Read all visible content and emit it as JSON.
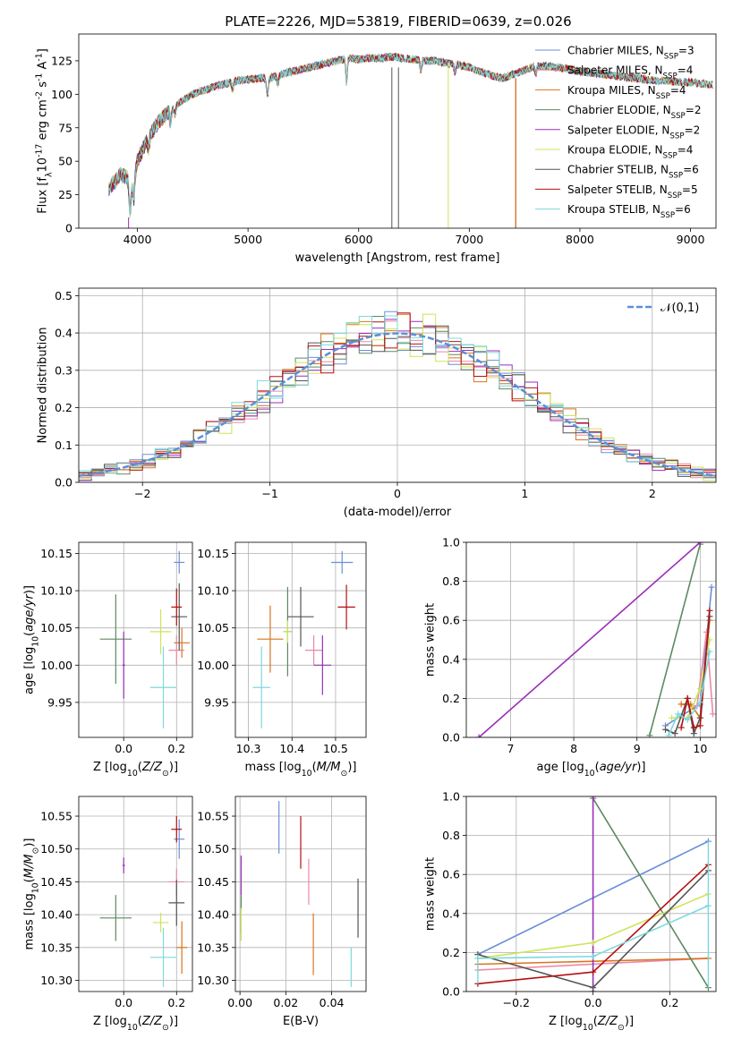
{
  "figure_title": "PLATE=2226, MJD=53819, FIBERID=0639, z=0.026",
  "colors": {
    "Chabrier MILES": "#6b8fd9",
    "Salpeter MILES": "#e98aa4",
    "Kroupa MILES": "#d9741f",
    "Chabrier ELODIE": "#5c8a62",
    "Salpeter ELODIE": "#9a2fb8",
    "Kroupa ELODIE": "#cde45a",
    "Chabrier STELIB": "#555555",
    "Salpeter STELIB": "#b51010",
    "Kroupa STELIB": "#7dd9dd"
  },
  "chart_data": [
    {
      "id": "spectrum",
      "type": "line",
      "title": "PLATE=2226, MJD=53819, FIBERID=0639, z=0.026",
      "xlabel": "wavelength [Angstrom, rest frame]",
      "ylabel": "Flux [f$_\\lambda$10$^{-17}$ erg cm$^{-2}$ s$^{-1}$ A$^{-1}$]",
      "xlim": [
        3470,
        9230
      ],
      "ylim": [
        0,
        145
      ],
      "xticks": [
        4000,
        5000,
        6000,
        7000,
        8000,
        9000
      ],
      "yticks": [
        0,
        25,
        50,
        75,
        100,
        125
      ],
      "legend_position": "top-right",
      "legend": [
        "Chabrier MILES, N$_{SSP}$=3",
        "Salpeter MILES, N$_{SSP}$=4",
        "Kroupa MILES, N$_{SSP}$=4",
        "Chabrier ELODIE, N$_{SSP}$=2",
        "Salpeter ELODIE, N$_{SSP}$=2",
        "Kroupa ELODIE, N$_{SSP}$=4",
        "Chabrier STELIB, N$_{SSP}$=6",
        "Salpeter STELIB, N$_{SSP}$=5",
        "Kroupa STELIB, N$_{SSP}$=6"
      ],
      "continuum": {
        "x": [
          3740,
          3800,
          3850,
          3900,
          3950,
          4000,
          4100,
          4200,
          4300,
          4400,
          4500,
          4600,
          4700,
          4800,
          4900,
          5000,
          5100,
          5200,
          5300,
          5400,
          5500,
          5600,
          5700,
          5800,
          5900,
          6000,
          6100,
          6200,
          6300,
          6400,
          6500,
          6600,
          6700,
          6800,
          6900,
          7000,
          7100,
          7200,
          7300,
          7400,
          7500,
          7600,
          7700,
          7800,
          7900,
          8000,
          8100,
          8200,
          8300,
          8400,
          8500,
          8600,
          8700,
          8800,
          8900,
          9000,
          9100,
          9200
        ],
        "y": [
          30,
          35,
          40,
          38,
          30,
          50,
          68,
          80,
          88,
          95,
          100,
          103,
          106,
          108,
          110,
          111,
          112,
          112,
          115,
          117,
          119,
          121,
          123,
          125,
          127,
          126,
          127,
          127,
          128,
          127,
          126,
          125,
          125,
          123,
          122,
          120,
          117,
          114,
          112,
          115,
          118,
          121,
          121,
          120,
          119,
          117,
          116,
          115,
          114,
          113,
          112,
          111,
          110,
          110,
          109,
          109,
          108,
          107
        ]
      },
      "end_wavelengths": [
        9020,
        9020,
        9020,
        9020,
        9020,
        9200,
        9200,
        9200,
        9200
      ],
      "drop_lines": [
        {
          "model": "Salpeter ELODIE",
          "x": 3920,
          "from": 8
        },
        {
          "model": "Kroupa ELODIE",
          "x": 6810,
          "from": 120
        },
        {
          "model": "Salpeter STELIB",
          "x": 7420,
          "from": 112
        },
        {
          "model": "Kroupa MILES",
          "x": 7420,
          "from": 112
        },
        {
          "model": "Chabrier STELIB",
          "x": 6300,
          "from": 120
        },
        {
          "model": "Chabrier STELIB",
          "x": 6360,
          "from": 120
        }
      ]
    },
    {
      "id": "residuals",
      "type": "area",
      "xlabel": "(data-model)/error",
      "ylabel": "Normed distribution",
      "xlim": [
        -2.5,
        2.5
      ],
      "ylim": [
        0,
        0.52
      ],
      "xticks": [
        -2,
        -1,
        0,
        1,
        2
      ],
      "yticks": [
        0.0,
        0.1,
        0.2,
        0.3,
        0.4,
        0.5
      ],
      "grid": true,
      "legend_position": "top-right",
      "reference_curve": {
        "label": "$\\mathcal{N}(0,1)$",
        "mean": 0,
        "sigma": 1
      },
      "bin_width": 0.1
    },
    {
      "id": "age_vs_Z",
      "type": "scatter",
      "xlabel": "Z [log$_{10}$($Z/Z_\\odot$)]",
      "ylabel": "age  [log$_{10}$($age/yr$)]",
      "xlim": [
        -0.17,
        0.26
      ],
      "ylim": [
        9.903,
        10.165
      ],
      "xticks": [
        0.0,
        0.2
      ],
      "yticks": [
        9.95,
        10.0,
        10.05,
        10.1,
        10.15
      ],
      "grid": true,
      "points": [
        {
          "model": "Chabrier MILES",
          "x": 0.21,
          "y": 10.138,
          "xerr": 0.02,
          "yerr": 0.015
        },
        {
          "model": "Salpeter MILES",
          "x": 0.2,
          "y": 10.02,
          "xerr": 0.03,
          "yerr": 0.02
        },
        {
          "model": "Kroupa MILES",
          "x": 0.22,
          "y": 10.03,
          "xerr": 0.03,
          "yerr": 0.02
        },
        {
          "model": "Chabrier ELODIE",
          "x": -0.03,
          "y": 10.035,
          "xerr": 0.06,
          "yerr": 0.06
        },
        {
          "model": "Salpeter ELODIE",
          "x": 0.0,
          "y": 10.0,
          "xerr": 0.005,
          "yerr": 0.045
        },
        {
          "model": "Kroupa ELODIE",
          "x": 0.14,
          "y": 10.045,
          "xerr": 0.04,
          "yerr": 0.03
        },
        {
          "model": "Chabrier STELIB",
          "x": 0.21,
          "y": 10.065,
          "xerr": 0.03,
          "yerr": 0.045
        },
        {
          "model": "Salpeter STELIB",
          "x": 0.2,
          "y": 10.078,
          "xerr": 0.02,
          "yerr": 0.025
        },
        {
          "model": "Kroupa STELIB",
          "x": 0.15,
          "y": 9.97,
          "xerr": 0.05,
          "yerr": 0.055
        }
      ]
    },
    {
      "id": "age_vs_mass",
      "type": "scatter",
      "xlabel": "mass [log$_{10}$($M/M_\\odot$)]",
      "ylabel": "",
      "xlim": [
        10.27,
        10.57
      ],
      "ylim": [
        9.903,
        10.165
      ],
      "xticks": [
        10.3,
        10.4,
        10.5
      ],
      "yticks": [
        9.95,
        10.0,
        10.05,
        10.1,
        10.15
      ],
      "grid": true,
      "points": [
        {
          "model": "Chabrier MILES",
          "x": 10.515,
          "y": 10.138,
          "xerr": 0.025,
          "yerr": 0.015
        },
        {
          "model": "Salpeter MILES",
          "x": 10.45,
          "y": 10.02,
          "xerr": 0.02,
          "yerr": 0.02
        },
        {
          "model": "Kroupa MILES",
          "x": 10.35,
          "y": 10.035,
          "xerr": 0.03,
          "yerr": 0.045
        },
        {
          "model": "Chabrier ELODIE",
          "x": 10.39,
          "y": 10.045,
          "xerr": 0.01,
          "yerr": 0.06
        },
        {
          "model": "Salpeter ELODIE",
          "x": 10.47,
          "y": 10.0,
          "xerr": 0.02,
          "yerr": 0.04
        },
        {
          "model": "Kroupa ELODIE",
          "x": 10.39,
          "y": 10.045,
          "xerr": 0.01,
          "yerr": 0.015
        },
        {
          "model": "Chabrier STELIB",
          "x": 10.42,
          "y": 10.065,
          "xerr": 0.03,
          "yerr": 0.04
        },
        {
          "model": "Salpeter STELIB",
          "x": 10.525,
          "y": 10.078,
          "xerr": 0.02,
          "yerr": 0.03
        },
        {
          "model": "Kroupa STELIB",
          "x": 10.33,
          "y": 9.97,
          "xerr": 0.02,
          "yerr": 0.055
        }
      ]
    },
    {
      "id": "weight_vs_age",
      "type": "line",
      "xlabel": "age  [log$_{10}$($age/yr$)]",
      "ylabel": "mass weight",
      "xlim": [
        6.3,
        10.25
      ],
      "ylim": [
        0,
        1.0
      ],
      "xticks": [
        7,
        8,
        9,
        10
      ],
      "yticks": [
        0.0,
        0.2,
        0.4,
        0.6,
        0.8,
        1.0
      ],
      "grid": true,
      "series": [
        {
          "model": "Chabrier MILES",
          "x": [
            9.45,
            10.0,
            10.18
          ],
          "y": [
            0.06,
            0.17,
            0.77
          ]
        },
        {
          "model": "Salpeter MILES",
          "x": [
            9.7,
            9.95,
            10.1,
            10.2
          ],
          "y": [
            0.17,
            0.16,
            0.54,
            0.12
          ]
        },
        {
          "model": "Kroupa MILES",
          "x": [
            9.7,
            9.85,
            10.0,
            10.15
          ],
          "y": [
            0.17,
            0.17,
            0.1,
            0.6
          ]
        },
        {
          "model": "Chabrier ELODIE",
          "x": [
            9.2,
            10.0
          ],
          "y": [
            0.01,
            0.99
          ]
        },
        {
          "model": "Salpeter ELODIE",
          "x": [
            6.5,
            10.0
          ],
          "y": [
            0.0,
            1.0
          ]
        },
        {
          "model": "Kroupa ELODIE",
          "x": [
            9.55,
            9.8,
            10.0,
            10.15
          ],
          "y": [
            0.1,
            0.1,
            0.25,
            0.5
          ]
        },
        {
          "model": "Chabrier STELIB",
          "x": [
            9.45,
            9.6,
            9.8,
            9.9,
            10.0,
            10.15
          ],
          "y": [
            0.04,
            0.02,
            0.2,
            0.02,
            0.1,
            0.62
          ]
        },
        {
          "model": "Salpeter STELIB",
          "x": [
            9.7,
            9.8,
            9.9,
            10.0,
            10.15
          ],
          "y": [
            0.05,
            0.2,
            0.05,
            0.06,
            0.65
          ]
        },
        {
          "model": "Kroupa STELIB",
          "x": [
            9.5,
            9.65,
            9.8,
            10.0,
            10.15
          ],
          "y": [
            0.01,
            0.12,
            0.09,
            0.18,
            0.44
          ]
        }
      ]
    },
    {
      "id": "mass_vs_Z",
      "type": "scatter",
      "xlabel": "Z [log$_{10}$($Z/Z_\\odot$)]",
      "ylabel": "mass [log$_{10}$($M/M_\\odot$)]",
      "xlim": [
        -0.17,
        0.26
      ],
      "ylim": [
        10.283,
        10.58
      ],
      "xticks": [
        0.0,
        0.2
      ],
      "yticks": [
        10.3,
        10.35,
        10.4,
        10.45,
        10.5,
        10.55
      ],
      "grid": true,
      "points": [
        {
          "model": "Chabrier MILES",
          "x": 0.21,
          "y": 10.515,
          "xerr": 0.02,
          "yerr": 0.03
        },
        {
          "model": "Salpeter MILES",
          "x": 0.2,
          "y": 10.45,
          "xerr": 0.03,
          "yerr": 0.02
        },
        {
          "model": "Kroupa MILES",
          "x": 0.22,
          "y": 10.35,
          "xerr": 0.02,
          "yerr": 0.04
        },
        {
          "model": "Chabrier ELODIE",
          "x": -0.03,
          "y": 10.395,
          "xerr": 0.06,
          "yerr": 0.035
        },
        {
          "model": "Salpeter ELODIE",
          "x": 0.0,
          "y": 10.475,
          "xerr": 0.005,
          "yerr": 0.012
        },
        {
          "model": "Kroupa ELODIE",
          "x": 0.14,
          "y": 10.388,
          "xerr": 0.03,
          "yerr": 0.015
        },
        {
          "model": "Chabrier STELIB",
          "x": 0.2,
          "y": 10.418,
          "xerr": 0.03,
          "yerr": 0.035
        },
        {
          "model": "Salpeter STELIB",
          "x": 0.2,
          "y": 10.53,
          "xerr": 0.02,
          "yerr": 0.02
        },
        {
          "model": "Kroupa STELIB",
          "x": 0.15,
          "y": 10.335,
          "xerr": 0.05,
          "yerr": 0.045
        }
      ]
    },
    {
      "id": "mass_vs_ebv",
      "type": "scatter",
      "xlabel": "E(B-V)",
      "ylabel": "",
      "xlim": [
        -0.002,
        0.055
      ],
      "ylim": [
        10.283,
        10.58
      ],
      "xticks": [
        0.0,
        0.02,
        0.04
      ],
      "yticks": [
        10.3,
        10.35,
        10.4,
        10.45,
        10.5,
        10.55
      ],
      "grid": true,
      "points": [
        {
          "model": "Chabrier MILES",
          "x": 0.017,
          "y": 10.533,
          "xerr": 0.0,
          "yerr": 0.04
        },
        {
          "model": "Salpeter MILES",
          "x": 0.03,
          "y": 10.45,
          "xerr": 0.0,
          "yerr": 0.035
        },
        {
          "model": "Kroupa MILES",
          "x": 0.032,
          "y": 10.355,
          "xerr": 0.0,
          "yerr": 0.047
        },
        {
          "model": "Chabrier ELODIE",
          "x": 0.0005,
          "y": 10.4,
          "xerr": 0.0,
          "yerr": 0.03
        },
        {
          "model": "Salpeter ELODIE",
          "x": 0.0005,
          "y": 10.46,
          "xerr": 0.0,
          "yerr": 0.03
        },
        {
          "model": "Kroupa ELODIE",
          "x": 0.0005,
          "y": 10.385,
          "xerr": 0.0,
          "yerr": 0.025
        },
        {
          "model": "Chabrier STELIB",
          "x": 0.0515,
          "y": 10.41,
          "xerr": 0.0,
          "yerr": 0.045
        },
        {
          "model": "Salpeter STELIB",
          "x": 0.0265,
          "y": 10.51,
          "xerr": 0.0,
          "yerr": 0.04
        },
        {
          "model": "Kroupa STELIB",
          "x": 0.0485,
          "y": 10.32,
          "xerr": 0.0,
          "yerr": 0.03
        }
      ]
    },
    {
      "id": "weight_vs_Z",
      "type": "line",
      "xlabel": "Z [log$_{10}$($Z/Z_\\odot$)]",
      "ylabel": "mass weight",
      "xlim": [
        -0.33,
        0.32
      ],
      "ylim": [
        0,
        1.0
      ],
      "xticks": [
        -0.2,
        0.0,
        0.2
      ],
      "yticks": [
        0.0,
        0.2,
        0.4,
        0.6,
        0.8,
        1.0
      ],
      "grid": true,
      "series": [
        {
          "model": "Chabrier MILES",
          "x": [
            -0.3,
            0.3
          ],
          "y": [
            0.19,
            0.77
          ]
        },
        {
          "model": "Salpeter MILES",
          "x": [
            -0.3,
            0.3
          ],
          "y": [
            0.11,
            0.17
          ]
        },
        {
          "model": "Kroupa MILES",
          "x": [
            -0.3,
            0.3
          ],
          "y": [
            0.14,
            0.17
          ]
        },
        {
          "model": "Chabrier ELODIE",
          "x": [
            0.0,
            0.3
          ],
          "y": [
            0.99,
            0.02
          ]
        },
        {
          "model": "Salpeter ELODIE",
          "x": [
            0.0,
            0.0
          ],
          "y": [
            0.0,
            1.0
          ]
        },
        {
          "model": "Kroupa ELODIE",
          "x": [
            -0.3,
            0.0,
            0.3
          ],
          "y": [
            0.17,
            0.25,
            0.5
          ]
        },
        {
          "model": "Chabrier STELIB",
          "x": [
            -0.3,
            0.0,
            0.3
          ],
          "y": [
            0.19,
            0.02,
            0.62
          ]
        },
        {
          "model": "Salpeter STELIB",
          "x": [
            -0.3,
            0.0,
            0.3
          ],
          "y": [
            0.04,
            0.1,
            0.65
          ]
        },
        {
          "model": "Kroupa STELIB",
          "x": [
            -0.3,
            0.0,
            0.3
          ],
          "y": [
            0.17,
            0.18,
            0.44
          ]
        }
      ],
      "vertical_stacks": [
        {
          "x": -0.3,
          "ys": [
            0.04,
            0.1,
            0.12,
            0.14,
            0.17,
            0.19
          ]
        },
        {
          "x": 0.3,
          "ys": [
            0.02,
            0.03,
            0.1,
            0.17,
            0.44,
            0.5,
            0.62,
            0.65,
            0.77
          ]
        }
      ]
    }
  ]
}
